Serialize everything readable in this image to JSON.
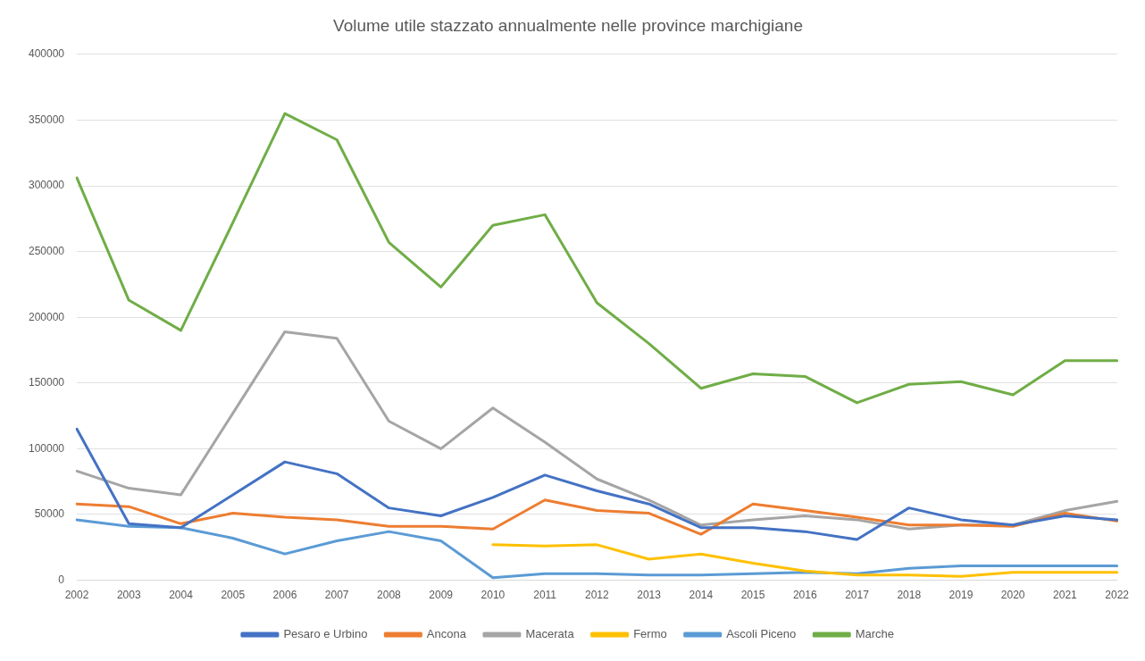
{
  "chart_data": {
    "type": "line",
    "title": "Volume utile stazzato annualmente nelle province marchigiane",
    "categories": [
      "2002",
      "2003",
      "2004",
      "2005",
      "2006",
      "2007",
      "2008",
      "2009",
      "2010",
      "2011",
      "2012",
      "2013",
      "2014",
      "2015",
      "2016",
      "2017",
      "2018",
      "2019",
      "2020",
      "2021",
      "2022"
    ],
    "series": [
      {
        "name": "Pesaro e Urbino",
        "color": "#4472c4",
        "values": [
          115000,
          43000,
          40000,
          65000,
          90000,
          81000,
          55000,
          49000,
          63000,
          80000,
          68000,
          58000,
          40000,
          40000,
          37000,
          31000,
          55000,
          46000,
          42000,
          49000,
          46000
        ]
      },
      {
        "name": "Ancona",
        "color": "#ed7d31",
        "values": [
          58000,
          56000,
          43000,
          51000,
          48000,
          46000,
          41000,
          41000,
          39000,
          61000,
          53000,
          51000,
          35000,
          58000,
          53000,
          48000,
          42000,
          42000,
          41000,
          51000,
          45000
        ]
      },
      {
        "name": "Macerata",
        "color": "#a5a5a5",
        "values": [
          83000,
          70000,
          65000,
          127000,
          189000,
          184000,
          121000,
          100000,
          131000,
          105000,
          77000,
          61000,
          42000,
          46000,
          49000,
          46000,
          39000,
          42000,
          42000,
          53000,
          60000
        ]
      },
      {
        "name": "Fermo",
        "color": "#ffc000",
        "values": [
          null,
          null,
          null,
          null,
          null,
          null,
          null,
          null,
          27000,
          26000,
          27000,
          16000,
          20000,
          13000,
          7000,
          4000,
          4000,
          3000,
          6000,
          6000,
          6000
        ]
      },
      {
        "name": "Ascoli Piceno",
        "color": "#5b9bd5",
        "values": [
          46000,
          41000,
          40000,
          32000,
          20000,
          30000,
          37000,
          30000,
          2000,
          5000,
          5000,
          4000,
          4000,
          5000,
          6000,
          5000,
          9000,
          11000,
          11000,
          11000,
          11000
        ]
      },
      {
        "name": "Marche",
        "color": "#70ad47",
        "values": [
          306000,
          213000,
          190000,
          272000,
          355000,
          335000,
          257000,
          223000,
          270000,
          278000,
          211000,
          180000,
          146000,
          157000,
          155000,
          135000,
          149000,
          151000,
          141000,
          167000,
          167000
        ]
      }
    ],
    "ylim": [
      0,
      400000
    ],
    "yticks": [
      0,
      50000,
      100000,
      150000,
      200000,
      250000,
      300000,
      350000,
      400000
    ],
    "grid": "y",
    "legend": "bottom",
    "marker": "none",
    "line_style": "solid"
  }
}
